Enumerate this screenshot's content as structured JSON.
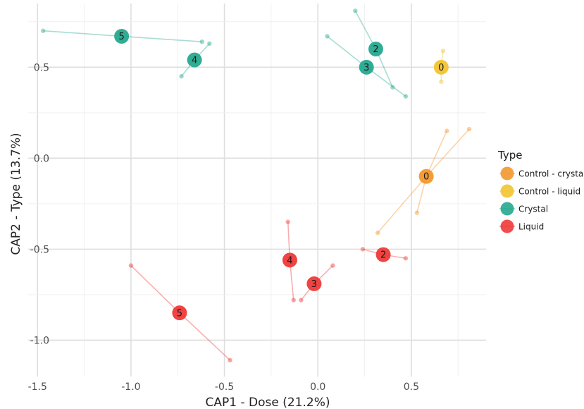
{
  "chart_data": {
    "type": "scatter",
    "xlabel": "CAP1 - Dose (21.2%)",
    "ylabel": "CAP2 - Type (13.7%)",
    "xlim": [
      -1.55,
      0.9
    ],
    "ylim": [
      -1.2,
      0.85
    ],
    "x_ticks": [
      -1.5,
      -1.0,
      -0.5,
      0.0,
      0.5
    ],
    "x_tick_labels": [
      "-1.5",
      "-1.0",
      "-0.5",
      "0.0",
      "0.5"
    ],
    "y_ticks": [
      -1.0,
      -0.5,
      0.0,
      0.5
    ],
    "y_tick_labels": [
      "-1.0",
      "-0.5",
      "0.0",
      "0.5"
    ],
    "grid": true,
    "legend": {
      "title": "Type",
      "position": "right",
      "entries": [
        {
          "label": "Control - crystal",
          "color": "#f2972e"
        },
        {
          "label": "Control - liquid",
          "color": "#f2c431"
        },
        {
          "label": "Crystal",
          "color": "#26a98f"
        },
        {
          "label": "Liquid",
          "color": "#ee3a38"
        }
      ]
    },
    "groups": [
      {
        "type": "Crystal",
        "label": "5",
        "centroid": [
          -1.05,
          0.67
        ],
        "points": [
          [
            -1.47,
            0.7
          ],
          [
            -0.62,
            0.64
          ]
        ]
      },
      {
        "type": "Crystal",
        "label": "4",
        "centroid": [
          -0.66,
          0.54
        ],
        "points": [
          [
            -0.73,
            0.45
          ],
          [
            -0.58,
            0.63
          ]
        ]
      },
      {
        "type": "Crystal",
        "label": "2",
        "centroid": [
          0.31,
          0.6
        ],
        "points": [
          [
            0.2,
            0.81
          ],
          [
            0.4,
            0.39
          ]
        ]
      },
      {
        "type": "Crystal",
        "label": "3",
        "centroid": [
          0.26,
          0.5
        ],
        "points": [
          [
            0.05,
            0.67
          ],
          [
            0.47,
            0.34
          ]
        ]
      },
      {
        "type": "Control - liquid",
        "label": "0",
        "centroid": [
          0.66,
          0.5
        ],
        "points": [
          [
            0.67,
            0.59
          ],
          [
            0.66,
            0.42
          ]
        ]
      },
      {
        "type": "Control - crystal",
        "label": "0",
        "centroid": [
          0.58,
          -0.1
        ],
        "points": [
          [
            0.69,
            0.15
          ],
          [
            0.81,
            0.16
          ],
          [
            0.32,
            -0.41
          ],
          [
            0.53,
            -0.3
          ]
        ]
      },
      {
        "type": "Liquid",
        "label": "4",
        "centroid": [
          -0.15,
          -0.56
        ],
        "points": [
          [
            -0.16,
            -0.35
          ],
          [
            -0.13,
            -0.78
          ]
        ]
      },
      {
        "type": "Liquid",
        "label": "3",
        "centroid": [
          -0.02,
          -0.69
        ],
        "points": [
          [
            0.08,
            -0.59
          ],
          [
            -0.09,
            -0.78
          ]
        ]
      },
      {
        "type": "Liquid",
        "label": "2",
        "centroid": [
          0.35,
          -0.53
        ],
        "points": [
          [
            0.24,
            -0.5
          ],
          [
            0.47,
            -0.55
          ]
        ]
      },
      {
        "type": "Liquid",
        "label": "5",
        "centroid": [
          -0.74,
          -0.85
        ],
        "points": [
          [
            -1.0,
            -0.59
          ],
          [
            -0.47,
            -1.11
          ]
        ]
      }
    ]
  }
}
